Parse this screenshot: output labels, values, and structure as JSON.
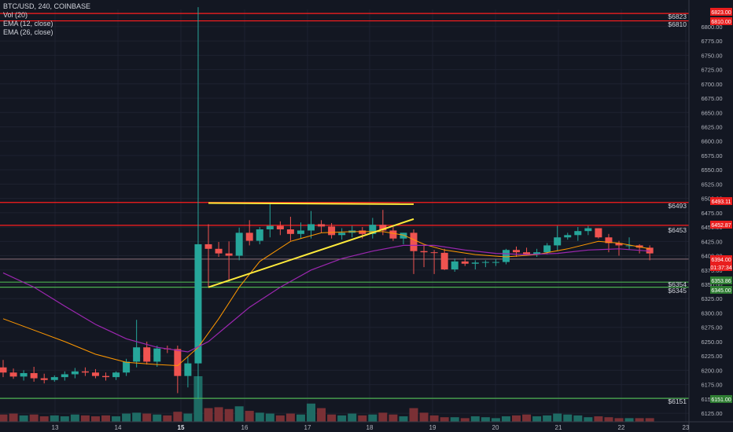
{
  "legend": {
    "symbol_line": "BTC/USD, 240, COINBASE",
    "vol_line": "Vol (20)",
    "ema12_line": "EMA (12, close)",
    "ema26_line": "EMA (26, close)"
  },
  "colors": {
    "background": "#131722",
    "up": "#26a69a",
    "down": "#ef5350",
    "ema12": "#ff9800",
    "ema26": "#9c27b0",
    "resistance": "#ff1e1e",
    "support": "#4caf50",
    "trendline": "#ffeb3b",
    "axis_text": "#b2b5be"
  },
  "chart_data": {
    "type": "candlestick",
    "symbol": "BTC/USD",
    "interval": "240",
    "exchange": "COINBASE",
    "xlabels": [
      "13",
      "14",
      "15",
      "16",
      "17",
      "18",
      "19",
      "20",
      "21",
      "22",
      "23"
    ],
    "xlabel_bold": "15",
    "ylim": [
      6110,
      6830
    ],
    "yticks": [
      6125,
      6150,
      6175,
      6200,
      6225,
      6250,
      6275,
      6300,
      6325,
      6350,
      6375,
      6400,
      6425,
      6450,
      6475,
      6500,
      6525,
      6550,
      6575,
      6600,
      6625,
      6650,
      6675,
      6700,
      6725,
      6750,
      6775,
      6800
    ],
    "ytick_labels": [
      "6125.00",
      "6150.00",
      "6175.00",
      "6200.00",
      "6225.00",
      "6250.00",
      "6275.00",
      "6300.00",
      "6325.00",
      "6350.00",
      "6375.00",
      "6400.00",
      "6425.00",
      "6450.00",
      "6475.00",
      "6500.00",
      "6525.00",
      "6550.00",
      "6575.00",
      "6600.00",
      "6625.00",
      "6650.00",
      "6675.00",
      "6700.00",
      "6725.00",
      "6750.00",
      "6775.00",
      "6800.00"
    ],
    "candles": [
      [
        6205,
        6218,
        6188,
        6196
      ],
      [
        6196,
        6203,
        6185,
        6189
      ],
      [
        6189,
        6200,
        6182,
        6195
      ],
      [
        6195,
        6206,
        6180,
        6186
      ],
      [
        6186,
        6194,
        6177,
        6183
      ],
      [
        6183,
        6191,
        6180,
        6188
      ],
      [
        6188,
        6198,
        6182,
        6193
      ],
      [
        6193,
        6204,
        6186,
        6198
      ],
      [
        6198,
        6205,
        6190,
        6196
      ],
      [
        6196,
        6202,
        6186,
        6190
      ],
      [
        6190,
        6196,
        6182,
        6188
      ],
      [
        6188,
        6198,
        6183,
        6196
      ],
      [
        6196,
        6220,
        6190,
        6215
      ],
      [
        6215,
        6288,
        6205,
        6240
      ],
      [
        6240,
        6250,
        6210,
        6215
      ],
      [
        6215,
        6243,
        6206,
        6238
      ],
      [
        6238,
        6243,
        6230,
        6237
      ],
      [
        6237,
        6243,
        6160,
        6190
      ],
      [
        6190,
        6224,
        6170,
        6212
      ],
      [
        6212,
        6834,
        6150,
        6420
      ],
      [
        6420,
        6455,
        6345,
        6412
      ],
      [
        6412,
        6424,
        6398,
        6404
      ],
      [
        6404,
        6425,
        6355,
        6400
      ],
      [
        6400,
        6449,
        6392,
        6440
      ],
      [
        6440,
        6462,
        6418,
        6426
      ],
      [
        6426,
        6450,
        6420,
        6446
      ],
      [
        6446,
        6491,
        6432,
        6452
      ],
      [
        6452,
        6460,
        6436,
        6446
      ],
      [
        6446,
        6468,
        6426,
        6438
      ],
      [
        6438,
        6458,
        6430,
        6444
      ],
      [
        6444,
        6478,
        6430,
        6455
      ],
      [
        6455,
        6462,
        6440,
        6451
      ],
      [
        6451,
        6457,
        6430,
        6436
      ],
      [
        6436,
        6448,
        6428,
        6440
      ],
      [
        6440,
        6452,
        6432,
        6444
      ],
      [
        6444,
        6450,
        6430,
        6438
      ],
      [
        6438,
        6466,
        6430,
        6454
      ],
      [
        6454,
        6480,
        6436,
        6444
      ],
      [
        6444,
        6450,
        6426,
        6430
      ],
      [
        6430,
        6440,
        6420,
        6440
      ],
      [
        6440,
        6446,
        6368,
        6408
      ],
      [
        6408,
        6418,
        6380,
        6406
      ],
      [
        6406,
        6410,
        6368,
        6405
      ],
      [
        6405,
        6412,
        6375,
        6376
      ],
      [
        6376,
        6395,
        6372,
        6390
      ],
      [
        6390,
        6396,
        6382,
        6386
      ],
      [
        6386,
        6392,
        6376,
        6388
      ],
      [
        6388,
        6392,
        6380,
        6389
      ],
      [
        6389,
        6394,
        6382,
        6389
      ],
      [
        6389,
        6412,
        6385,
        6410
      ],
      [
        6410,
        6416,
        6398,
        6406
      ],
      [
        6406,
        6414,
        6400,
        6402
      ],
      [
        6402,
        6412,
        6398,
        6406
      ],
      [
        6406,
        6422,
        6402,
        6418
      ],
      [
        6418,
        6452,
        6408,
        6432
      ],
      [
        6432,
        6440,
        6428,
        6436
      ],
      [
        6436,
        6450,
        6426,
        6443
      ],
      [
        6443,
        6452,
        6436,
        6448
      ],
      [
        6448,
        6448,
        6430,
        6432
      ],
      [
        6432,
        6438,
        6406,
        6422
      ],
      [
        6422,
        6426,
        6400,
        6418
      ],
      [
        6418,
        6432,
        6410,
        6418
      ],
      [
        6418,
        6420,
        6404,
        6414
      ],
      [
        6414,
        6418,
        6392,
        6404
      ]
    ],
    "volumes": [
      0.8,
      0.9,
      0.7,
      0.8,
      0.6,
      0.7,
      0.6,
      0.8,
      0.7,
      0.6,
      0.7,
      0.6,
      0.9,
      1.0,
      0.9,
      0.8,
      0.7,
      1.1,
      0.9,
      5.0,
      1.5,
      1.6,
      1.4,
      1.7,
      1.2,
      1.0,
      0.9,
      0.7,
      0.9,
      0.8,
      2.0,
      1.5,
      0.8,
      0.7,
      0.9,
      0.7,
      0.8,
      1.0,
      0.8,
      0.6,
      1.5,
      1.0,
      0.7,
      0.5,
      0.5,
      0.4,
      0.6,
      0.5,
      0.4,
      0.6,
      0.7,
      0.8,
      0.6,
      0.7,
      0.9,
      0.8,
      0.7,
      0.5,
      0.6,
      0.5,
      0.4,
      0.4,
      0.4,
      0.4
    ],
    "ema12": [
      [
        0,
        6290
      ],
      [
        3,
        6270
      ],
      [
        6,
        6250
      ],
      [
        9,
        6228
      ],
      [
        12,
        6214
      ],
      [
        15,
        6210
      ],
      [
        17,
        6208
      ],
      [
        19,
        6240
      ],
      [
        21,
        6290
      ],
      [
        23,
        6345
      ],
      [
        25,
        6390
      ],
      [
        28,
        6425
      ],
      [
        31,
        6440
      ],
      [
        34,
        6442
      ],
      [
        37,
        6442
      ],
      [
        39,
        6436
      ],
      [
        41,
        6420
      ],
      [
        43,
        6410
      ],
      [
        46,
        6402
      ],
      [
        49,
        6398
      ],
      [
        52,
        6402
      ],
      [
        55,
        6412
      ],
      [
        58,
        6425
      ],
      [
        60,
        6422
      ],
      [
        63,
        6412
      ]
    ],
    "ema26": [
      [
        0,
        6370
      ],
      [
        3,
        6345
      ],
      [
        6,
        6312
      ],
      [
        9,
        6280
      ],
      [
        12,
        6255
      ],
      [
        15,
        6240
      ],
      [
        18,
        6232
      ],
      [
        20,
        6250
      ],
      [
        22,
        6280
      ],
      [
        24,
        6310
      ],
      [
        27,
        6345
      ],
      [
        30,
        6375
      ],
      [
        33,
        6395
      ],
      [
        36,
        6408
      ],
      [
        39,
        6418
      ],
      [
        42,
        6418
      ],
      [
        45,
        6410
      ],
      [
        48,
        6404
      ],
      [
        51,
        6402
      ],
      [
        54,
        6404
      ],
      [
        57,
        6410
      ],
      [
        60,
        6412
      ],
      [
        63,
        6408
      ]
    ],
    "resistance_lines": [
      6823,
      6810,
      6493,
      6453
    ],
    "support_lines": [
      6353.86,
      6345,
      6151
    ],
    "grey_line": 6394,
    "trendlines": [
      {
        "from": [
          20,
          6492
        ],
        "to": [
          40,
          6490
        ]
      },
      {
        "from": [
          20,
          6345
        ],
        "to": [
          40,
          6464
        ]
      }
    ],
    "level_labels": {
      "left": [
        "$6823",
        "$6810",
        "$6493",
        "$6453",
        "$6354",
        "$6345",
        "$6151"
      ],
      "right": [
        "6823.00",
        "6810.00",
        "6493.11",
        "6452.87",
        "6394.00",
        "01:37:34",
        "6353.86",
        "6345.00",
        "6151.00"
      ]
    }
  }
}
